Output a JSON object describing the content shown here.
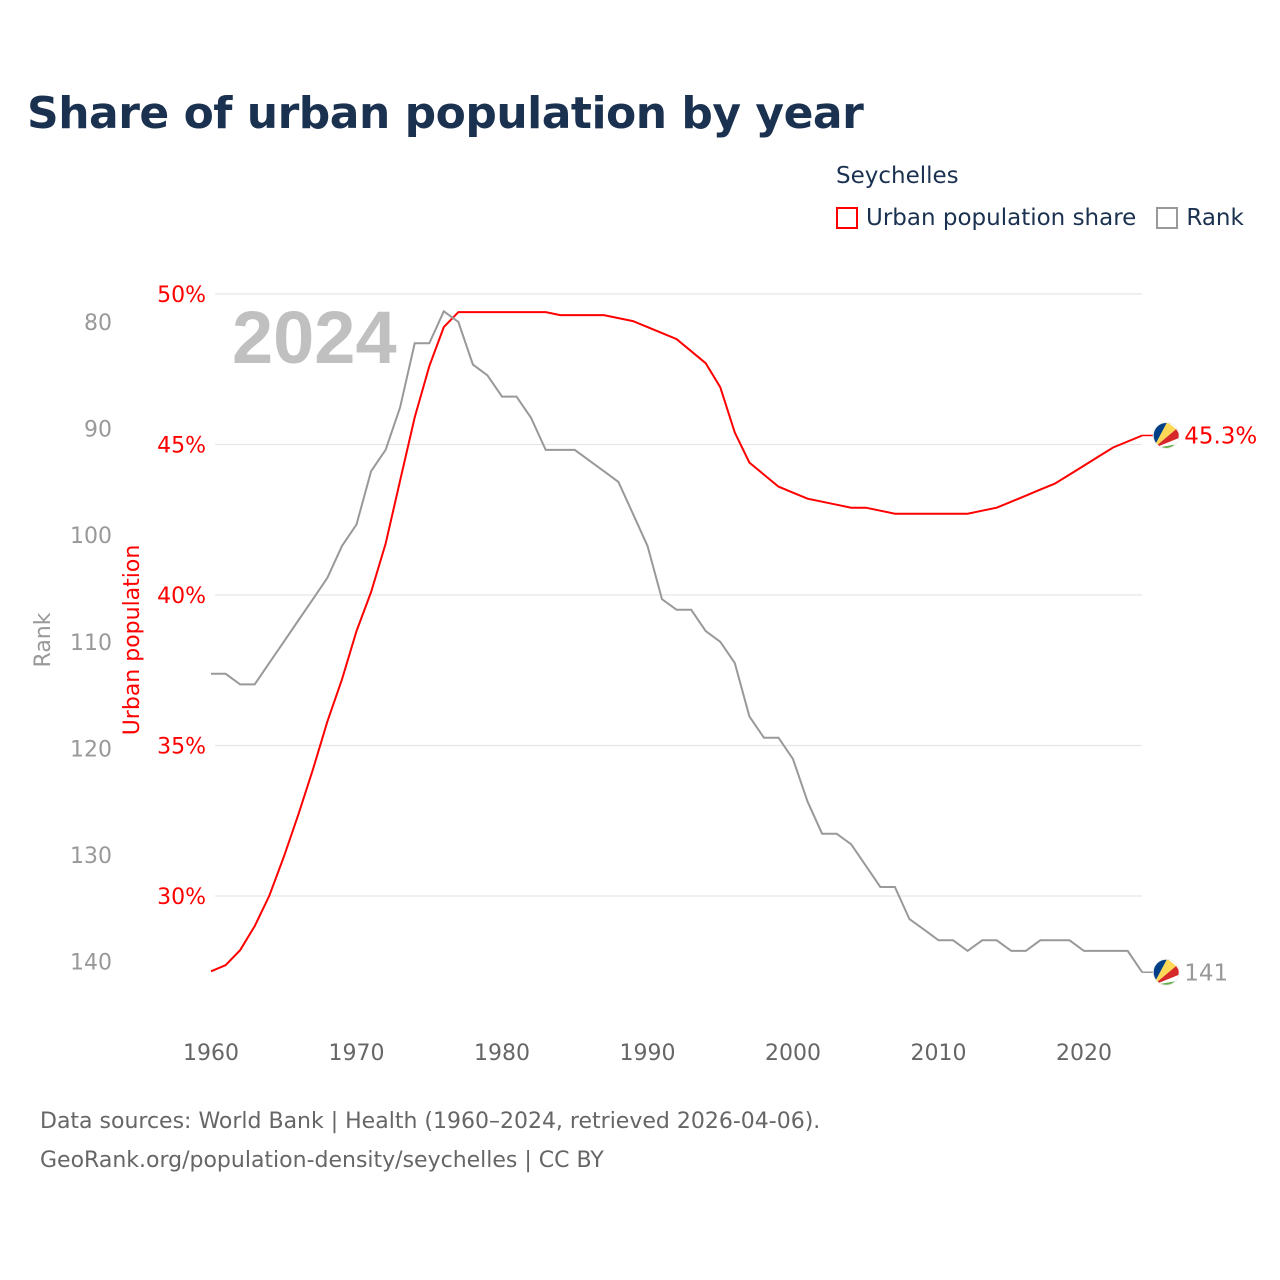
{
  "title": "Share of urban population by year",
  "legend": {
    "title": "Seychelles",
    "items": [
      {
        "label": "Urban population share",
        "color": "#ff0000"
      },
      {
        "label": "Rank",
        "color": "#999999"
      }
    ]
  },
  "year_watermark": "2024",
  "source_lines": [
    "Data sources: World Bank | Health (1960–2024, retrieved 2026-04-06).",
    "GeoRank.org/population-density/seychelles | CC BY"
  ],
  "end_labels": {
    "urban": "45.3%",
    "rank": "141"
  },
  "chart_data": {
    "type": "line",
    "title": "Share of urban population by year",
    "xlabel": "",
    "ylabel_left": "Rank",
    "ylabel_right": "Urban population",
    "x": [
      1960,
      1961,
      1962,
      1963,
      1964,
      1965,
      1966,
      1967,
      1968,
      1969,
      1970,
      1971,
      1972,
      1973,
      1974,
      1975,
      1976,
      1977,
      1978,
      1979,
      1980,
      1981,
      1982,
      1983,
      1984,
      1985,
      1986,
      1987,
      1988,
      1989,
      1990,
      1991,
      1992,
      1993,
      1994,
      1995,
      1996,
      1997,
      1998,
      1999,
      2000,
      2001,
      2002,
      2003,
      2004,
      2005,
      2006,
      2007,
      2008,
      2009,
      2010,
      2011,
      2012,
      2013,
      2014,
      2015,
      2016,
      2017,
      2018,
      2019,
      2020,
      2021,
      2022,
      2023,
      2024
    ],
    "xlim": [
      1960,
      2024
    ],
    "x_ticks": [
      "1960",
      "1970",
      "1980",
      "1990",
      "2000",
      "2010",
      "2020"
    ],
    "urban_axis": {
      "range": [
        25.5,
        50
      ],
      "ticks": [
        "50%",
        "45%",
        "40%",
        "35%",
        "30%"
      ],
      "tick_values": [
        50,
        45,
        40,
        35,
        30
      ]
    },
    "rank_axis": {
      "range": [
        77.4,
        146
      ],
      "inverted": true,
      "ticks": [
        "80",
        "90",
        "100",
        "110",
        "120",
        "130",
        "140"
      ],
      "tick_values": [
        80,
        90,
        100,
        110,
        120,
        130,
        140
      ]
    },
    "grid": true,
    "legend_placement": "top-right",
    "series": [
      {
        "name": "Urban population share",
        "axis": "urban",
        "color": "#ff0000",
        "values": [
          27.5,
          27.7,
          28.2,
          29.0,
          30.0,
          31.3,
          32.7,
          34.2,
          35.8,
          37.2,
          38.8,
          40.1,
          41.7,
          43.8,
          45.9,
          47.6,
          48.9,
          49.4,
          49.4,
          49.4,
          49.4,
          49.4,
          49.4,
          49.4,
          49.3,
          49.3,
          49.3,
          49.3,
          49.2,
          49.1,
          48.9,
          48.7,
          48.5,
          48.1,
          47.7,
          46.9,
          45.4,
          44.4,
          44.0,
          43.6,
          43.4,
          43.2,
          43.1,
          43.0,
          42.9,
          42.9,
          42.8,
          42.7,
          42.7,
          42.7,
          42.7,
          42.7,
          42.7,
          42.8,
          42.9,
          43.1,
          43.3,
          43.5,
          43.7,
          44.0,
          44.3,
          44.6,
          44.9,
          45.1,
          45.3
        ]
      },
      {
        "name": "Rank",
        "axis": "rank",
        "color": "#999999",
        "values": [
          113,
          113,
          114,
          114,
          112,
          110,
          108,
          106,
          104,
          101,
          99,
          94,
          92,
          88,
          82,
          82,
          79,
          80,
          84,
          85,
          87,
          87,
          89,
          92,
          92,
          92,
          93,
          94,
          95,
          98,
          101,
          106,
          107,
          107,
          109,
          110,
          112,
          117,
          119,
          119,
          121,
          125,
          128,
          128,
          129,
          131,
          133,
          133,
          136,
          137,
          138,
          138,
          139,
          138,
          138,
          139,
          139,
          138,
          138,
          138,
          139,
          139,
          139,
          139,
          141
        ]
      }
    ]
  }
}
